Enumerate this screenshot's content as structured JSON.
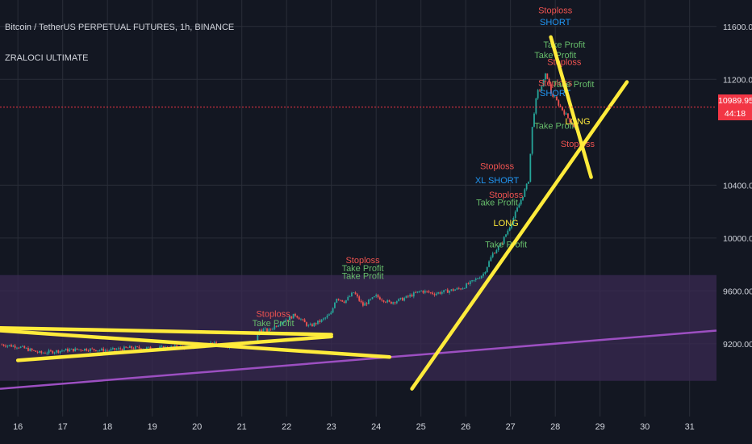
{
  "header": {
    "title": "Bitcoin / TetherUS PERPETUAL FUTURES, 1h, BINANCE",
    "indicator": "ZRALOCI ULTIMATE"
  },
  "price_badge": {
    "price": "10989.95",
    "countdown": "44:18",
    "color": "#f23645"
  },
  "colors": {
    "background": "#131722",
    "grid": "#2a2e39",
    "candle_up": "#26a69a",
    "candle_down": "#ef5350",
    "trend_line": "#ffeb3b",
    "zone_line": "#9c4fc1",
    "stoploss": "#ef5350",
    "short": "#2196f3",
    "take_profit": "#66bb6a",
    "long": "#ffeb3b"
  },
  "chart_data": {
    "type": "candlestick",
    "x_tick_labels": [
      "16",
      "17",
      "18",
      "19",
      "20",
      "21",
      "22",
      "23",
      "24",
      "25",
      "26",
      "27",
      "28",
      "29",
      "30",
      "31"
    ],
    "y_tick_labels": [
      "9200.00",
      "9600.00",
      "10000.00",
      "10400.00",
      "11200.00",
      "11600.00"
    ],
    "y_ticks": [
      9200,
      9600,
      10000,
      10400,
      11200,
      11600
    ],
    "xlim": [
      15.6,
      31.6
    ],
    "ylim": [
      8650,
      11800
    ],
    "current_price": 10989.95,
    "zone": [
      8920,
      9720
    ],
    "closes": [
      [
        15.6,
        9195
      ],
      [
        16.0,
        9180
      ],
      [
        16.5,
        9130
      ],
      [
        17.0,
        9150
      ],
      [
        17.5,
        9160
      ],
      [
        18.0,
        9150
      ],
      [
        18.5,
        9170
      ],
      [
        19.0,
        9165
      ],
      [
        19.5,
        9175
      ],
      [
        20.0,
        9180
      ],
      [
        20.3,
        9205
      ],
      [
        20.6,
        9180
      ],
      [
        21.0,
        9200
      ],
      [
        21.3,
        9210
      ],
      [
        21.4,
        9310
      ],
      [
        21.6,
        9300
      ],
      [
        21.9,
        9370
      ],
      [
        22.2,
        9420
      ],
      [
        22.5,
        9330
      ],
      [
        22.8,
        9380
      ],
      [
        23.0,
        9430
      ],
      [
        23.1,
        9550
      ],
      [
        23.3,
        9520
      ],
      [
        23.5,
        9590
      ],
      [
        23.7,
        9490
      ],
      [
        24.0,
        9560
      ],
      [
        24.3,
        9510
      ],
      [
        24.6,
        9540
      ],
      [
        25.0,
        9600
      ],
      [
        25.3,
        9580
      ],
      [
        25.6,
        9600
      ],
      [
        25.9,
        9620
      ],
      [
        26.2,
        9680
      ],
      [
        26.4,
        9730
      ],
      [
        26.6,
        9880
      ],
      [
        26.8,
        9960
      ],
      [
        27.0,
        10100
      ],
      [
        27.2,
        10260
      ],
      [
        27.4,
        10430
      ],
      [
        27.5,
        10900
      ],
      [
        27.6,
        11100
      ],
      [
        27.7,
        11150
      ],
      [
        27.8,
        11250
      ],
      [
        27.9,
        11100
      ],
      [
        28.0,
        11050
      ],
      [
        28.2,
        10950
      ],
      [
        28.4,
        10850
      ],
      [
        28.5,
        10800
      ]
    ],
    "trend_lines": [
      {
        "from": [
          15.6,
          9320
        ],
        "to": [
          23.0,
          9270
        ]
      },
      {
        "from": [
          15.6,
          9300
        ],
        "to": [
          24.3,
          9100
        ]
      },
      {
        "from": [
          16.0,
          9075
        ],
        "to": [
          23.0,
          9255
        ]
      },
      {
        "from": [
          24.8,
          8860
        ],
        "to": [
          29.6,
          11180
        ]
      },
      {
        "from": [
          27.9,
          11520
        ],
        "to": [
          28.8,
          10460
        ]
      }
    ],
    "zone_line": {
      "from": [
        15.6,
        8860
      ],
      "to": [
        31.6,
        9300
      ]
    },
    "annotations": [
      {
        "text": "Stoploss",
        "kind": "stoploss",
        "x": 21.7,
        "y": 9405
      },
      {
        "text": "Take Profit",
        "kind": "take_profit",
        "x": 21.7,
        "y": 9335
      },
      {
        "text": "Stoploss",
        "kind": "stoploss",
        "x": 23.7,
        "y": 9810
      },
      {
        "text": "Take Profit",
        "kind": "take_profit",
        "x": 23.7,
        "y": 9750
      },
      {
        "text": "Take Profit",
        "kind": "take_profit",
        "x": 23.7,
        "y": 9690
      },
      {
        "text": "Stoploss",
        "kind": "stoploss",
        "x": 26.7,
        "y": 10520
      },
      {
        "text": "XL SHORT",
        "kind": "short",
        "x": 26.7,
        "y": 10415
      },
      {
        "text": "Take Profit",
        "kind": "take_profit",
        "x": 26.7,
        "y": 10245
      },
      {
        "text": "Stoploss",
        "kind": "stoploss",
        "x": 26.9,
        "y": 10305
      },
      {
        "text": "LONG",
        "kind": "long",
        "x": 26.9,
        "y": 10090
      },
      {
        "text": "Take Profit",
        "kind": "take_profit",
        "x": 26.9,
        "y": 9930
      },
      {
        "text": "Stoploss",
        "kind": "stoploss",
        "x": 28.0,
        "y": 11700
      },
      {
        "text": "SHORT",
        "kind": "short",
        "x": 28.0,
        "y": 11610
      },
      {
        "text": "Take Profit",
        "kind": "take_profit",
        "x": 28.2,
        "y": 11440
      },
      {
        "text": "Take Profit",
        "kind": "take_profit",
        "x": 28.0,
        "y": 11360
      },
      {
        "text": "Stoploss",
        "kind": "stoploss",
        "x": 28.2,
        "y": 11310
      },
      {
        "text": "Stoploss",
        "kind": "stoploss",
        "x": 28.0,
        "y": 11150
      },
      {
        "text": "SHORT",
        "kind": "short",
        "x": 28.0,
        "y": 11075
      },
      {
        "text": "Take Profit",
        "kind": "take_profit",
        "x": 28.4,
        "y": 11140
      },
      {
        "text": "Take Profit",
        "kind": "take_profit",
        "x": 28.0,
        "y": 10825
      },
      {
        "text": "LONG",
        "kind": "long",
        "x": 28.5,
        "y": 10860
      },
      {
        "text": "Stoploss",
        "kind": "stoploss",
        "x": 28.5,
        "y": 10690
      }
    ]
  }
}
